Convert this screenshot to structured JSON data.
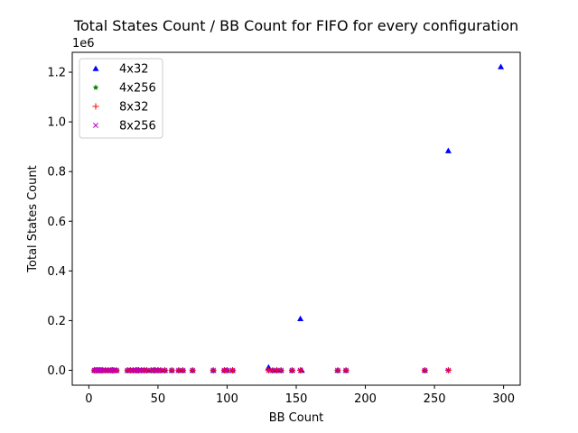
{
  "chart_data": {
    "type": "scatter",
    "title": "Total States Count / BB Count for FIFO for every configuration",
    "xlabel": "BB Count",
    "ylabel": "Total States Count",
    "y_offset_label": "1e6",
    "xlim": [
      -12,
      312
    ],
    "ylim": [
      -0.06,
      1.28
    ],
    "x_ticks": [
      0,
      50,
      100,
      150,
      200,
      250,
      300
    ],
    "y_ticks": [
      0.0,
      0.2,
      0.4,
      0.6,
      0.8,
      1.0,
      1.2
    ],
    "x_tick_labels": [
      "0",
      "50",
      "100",
      "150",
      "200",
      "250",
      "300"
    ],
    "y_tick_labels": [
      "0.0",
      "0.2",
      "0.4",
      "0.6",
      "0.8",
      "1.0",
      "1.2"
    ],
    "legend_position": "top-left",
    "grid": false,
    "series": [
      {
        "name": "4x32",
        "marker": "triangle",
        "color": "#0000ff",
        "x": [
          4,
          5,
          6,
          7,
          8,
          9,
          10,
          12,
          14,
          16,
          17,
          18,
          20,
          28,
          30,
          32,
          34,
          35,
          36,
          38,
          40,
          42,
          45,
          47,
          48,
          50,
          52,
          55,
          60,
          65,
          68,
          75,
          90,
          98,
          100,
          104,
          130,
          133,
          136,
          139,
          147,
          153,
          154,
          180,
          186,
          243,
          260,
          298
        ],
        "y": [
          0,
          0,
          0,
          0,
          0,
          0,
          0,
          0,
          0,
          0,
          0,
          0,
          0,
          0,
          0,
          0,
          0,
          0,
          0,
          0,
          0,
          0,
          0,
          0,
          0,
          0,
          0,
          0,
          0,
          0,
          0,
          0,
          0,
          0,
          0,
          0,
          0.012,
          0,
          0,
          0,
          0,
          0.208,
          0,
          0,
          0,
          0,
          0.884,
          1.222
        ]
      },
      {
        "name": "4x256",
        "marker": "star",
        "color": "#008000",
        "x": [
          4,
          5,
          6,
          7,
          8,
          9,
          10,
          12,
          14,
          16,
          17,
          18,
          20,
          28,
          30,
          32,
          34,
          35,
          36,
          38,
          40,
          42,
          45,
          47,
          48,
          50,
          52,
          55,
          60,
          65,
          68,
          75,
          90,
          98,
          100,
          104,
          130,
          133,
          136,
          139,
          147,
          153,
          180,
          186,
          243,
          260
        ],
        "y": [
          0,
          0,
          0,
          0,
          0,
          0,
          0,
          0,
          0,
          0,
          0,
          0,
          0,
          0,
          0,
          0,
          0,
          0,
          0,
          0,
          0,
          0,
          0,
          0,
          0,
          0,
          0,
          0,
          0,
          0,
          0,
          0,
          0,
          0,
          0,
          0,
          0,
          0,
          0,
          0,
          0,
          0,
          0,
          0,
          0,
          0
        ]
      },
      {
        "name": "8x32",
        "marker": "plus",
        "color": "#ff0000",
        "x": [
          4,
          5,
          6,
          7,
          8,
          9,
          10,
          12,
          14,
          16,
          17,
          18,
          20,
          28,
          30,
          32,
          34,
          35,
          36,
          38,
          40,
          42,
          45,
          47,
          48,
          50,
          52,
          55,
          60,
          65,
          68,
          75,
          90,
          98,
          100,
          104,
          130,
          133,
          136,
          139,
          147,
          153,
          180,
          186,
          243,
          260
        ],
        "y": [
          0,
          0,
          0,
          0,
          0,
          0,
          0,
          0,
          0,
          0,
          0,
          0,
          0,
          0,
          0,
          0,
          0,
          0,
          0,
          0,
          0,
          0,
          0,
          0,
          0,
          0,
          0,
          0,
          0,
          0,
          0,
          0,
          0,
          0,
          0,
          0,
          0,
          0,
          0,
          0,
          0,
          0,
          0,
          0,
          0,
          0
        ]
      },
      {
        "name": "8x256",
        "marker": "x",
        "color": "#bf00bf",
        "x": [
          4,
          5,
          6,
          7,
          8,
          9,
          10,
          12,
          14,
          16,
          17,
          18,
          20,
          28,
          30,
          32,
          34,
          35,
          36,
          38,
          40,
          42,
          45,
          47,
          48,
          50,
          52,
          55,
          60,
          65,
          68,
          75,
          90,
          98,
          100,
          104,
          130,
          133,
          136,
          139,
          147,
          153,
          180,
          186,
          243,
          260
        ],
        "y": [
          0,
          0,
          0,
          0,
          0,
          0,
          0,
          0,
          0,
          0,
          0,
          0,
          0,
          0,
          0,
          0,
          0,
          0,
          0,
          0,
          0,
          0,
          0,
          0,
          0,
          0,
          0,
          0,
          0,
          0,
          0,
          0,
          0,
          0,
          0,
          0,
          0,
          0,
          0,
          0,
          0,
          0,
          0,
          0,
          0,
          0
        ]
      }
    ]
  }
}
